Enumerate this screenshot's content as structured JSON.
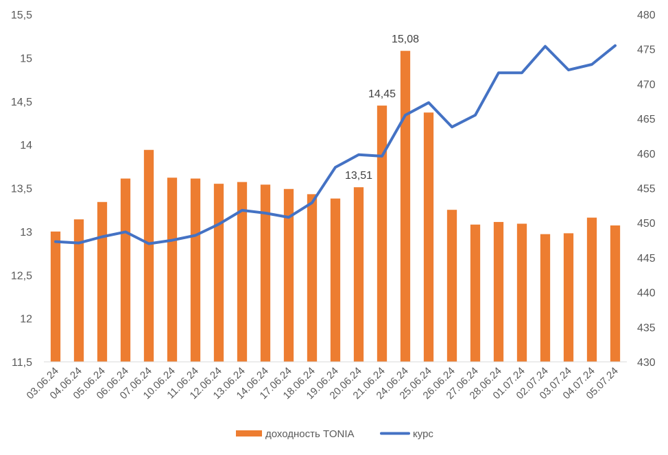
{
  "chart_data": {
    "type": "bar+line",
    "title": "",
    "categories": [
      "03.06.24",
      "04.06.24",
      "05.06.24",
      "06.06.24",
      "07.06.24",
      "10.06.24",
      "11.06.24",
      "12.06.24",
      "13.06.24",
      "14.06.24",
      "17.06.24",
      "18.06.24",
      "19.06.24",
      "20.06.24",
      "21.06.24",
      "24.06.24",
      "25.06.24",
      "26.06.24",
      "27.06.24",
      "28.06.24",
      "01.07.24",
      "02.07.24",
      "03.07.24",
      "04.07.24",
      "05.07.24"
    ],
    "series": [
      {
        "name": "доходность TONIA",
        "type": "bar",
        "axis": "left",
        "color": "#ED7D31",
        "values": [
          13.0,
          13.14,
          13.34,
          13.61,
          13.94,
          13.62,
          13.61,
          13.55,
          13.57,
          13.54,
          13.49,
          13.43,
          13.38,
          13.51,
          14.45,
          15.08,
          14.37,
          13.25,
          13.08,
          13.11,
          13.09,
          12.97,
          12.98,
          13.16,
          13.07
        ]
      },
      {
        "name": "курс",
        "type": "line",
        "axis": "right",
        "color": "#4472C4",
        "values": [
          447.3,
          447.1,
          448.0,
          448.7,
          447.0,
          447.5,
          448.2,
          449.8,
          451.8,
          451.4,
          450.8,
          452.9,
          458.0,
          459.8,
          459.6,
          465.5,
          467.3,
          463.8,
          465.5,
          471.6,
          471.6,
          475.4,
          472.0,
          472.8,
          475.5
        ]
      }
    ],
    "data_labels": [
      {
        "series": "доходность TONIA",
        "category": "20.06.24",
        "text": "13,51"
      },
      {
        "series": "доходность TONIA",
        "category": "21.06.24",
        "text": "14,45"
      },
      {
        "series": "доходность TONIA",
        "category": "24.06.24",
        "text": "15,08"
      }
    ],
    "left_axis": {
      "ylim": [
        11.5,
        15.5
      ],
      "ticks": [
        11.5,
        12,
        12.5,
        13,
        13.5,
        14,
        14.5,
        15,
        15.5
      ],
      "tick_labels": [
        "11,5",
        "12",
        "12,5",
        "13",
        "13,5",
        "14",
        "14,5",
        "15",
        "15,5"
      ]
    },
    "right_axis": {
      "ylim": [
        430,
        480
      ],
      "ticks": [
        430,
        435,
        440,
        445,
        450,
        455,
        460,
        465,
        470,
        475,
        480
      ],
      "tick_labels": [
        "430",
        "435",
        "440",
        "445",
        "450",
        "455",
        "460",
        "465",
        "470",
        "475",
        "480"
      ]
    },
    "grid": false,
    "legend": {
      "position": "bottom",
      "items": [
        "доходность TONIA",
        "курс"
      ]
    }
  }
}
